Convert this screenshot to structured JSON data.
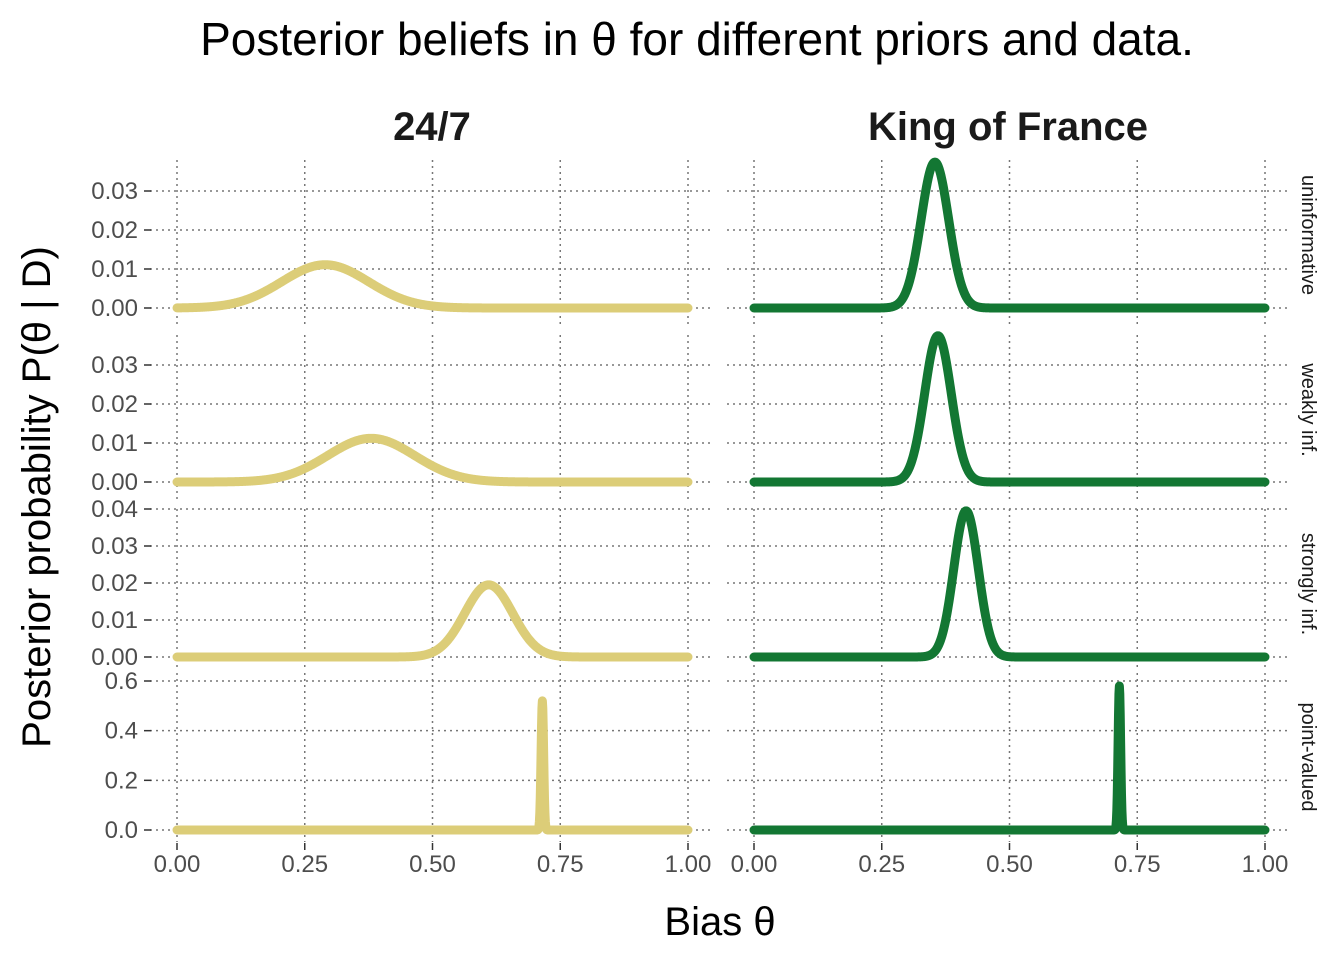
{
  "chart_data": {
    "type": "line",
    "title": "Posterior beliefs in θ for different priors and data.",
    "xlabel": "Bias θ",
    "ylabel": "Posterior probability P(θ | D)",
    "columns": [
      "24/7",
      "King of France"
    ],
    "rows": [
      "uninformative",
      "weakly inf.",
      "strongly inf.",
      "point-valued"
    ],
    "xlim": [
      0,
      1
    ],
    "xticks": [
      "0.00",
      "0.25",
      "0.50",
      "0.75",
      "1.00"
    ],
    "grid": "dotted",
    "colors": {
      "24/7": "#dccd78",
      "King of France": "#137733"
    },
    "row_axes": [
      {
        "ylim": [
          0,
          0.035
        ],
        "ticks": [
          0,
          0.01,
          0.02,
          0.03
        ],
        "tick_labels": [
          "0.00",
          "0.01",
          "0.02",
          "0.03"
        ]
      },
      {
        "ylim": [
          0,
          0.035
        ],
        "ticks": [
          0,
          0.01,
          0.02,
          0.03
        ],
        "tick_labels": [
          "0.00",
          "0.01",
          "0.02",
          "0.03"
        ]
      },
      {
        "ylim": [
          0,
          0.04
        ],
        "ticks": [
          0,
          0.01,
          0.02,
          0.03,
          0.04
        ],
        "tick_labels": [
          "0.00",
          "0.01",
          "0.02",
          "0.03",
          "0.04"
        ]
      },
      {
        "ylim": [
          0,
          0.6
        ],
        "ticks": [
          0,
          0.2,
          0.4,
          0.6
        ],
        "tick_labels": [
          "0.0",
          "0.2",
          "0.4",
          "0.6"
        ]
      }
    ],
    "series": [
      {
        "column": "24/7",
        "row": "uninformative",
        "peak_x": 0.29,
        "peak_y": 0.0111,
        "sd": 0.085
      },
      {
        "column": "King of France",
        "row": "uninformative",
        "peak_x": 0.354,
        "peak_y": 0.0374,
        "sd": 0.027
      },
      {
        "column": "24/7",
        "row": "weakly inf.",
        "peak_x": 0.38,
        "peak_y": 0.0112,
        "sd": 0.085
      },
      {
        "column": "King of France",
        "row": "weakly inf.",
        "peak_x": 0.36,
        "peak_y": 0.0375,
        "sd": 0.026
      },
      {
        "column": "24/7",
        "row": "strongly inf.",
        "peak_x": 0.61,
        "peak_y": 0.0195,
        "sd": 0.047
      },
      {
        "column": "King of France",
        "row": "strongly inf.",
        "peak_x": 0.415,
        "peak_y": 0.0395,
        "sd": 0.024
      },
      {
        "column": "24/7",
        "row": "point-valued",
        "peak_x": 0.715,
        "peak_y": 0.52,
        "sd": 0.0025
      },
      {
        "column": "King of France",
        "row": "point-valued",
        "peak_x": 0.715,
        "peak_y": 0.58,
        "sd": 0.0025
      }
    ]
  }
}
